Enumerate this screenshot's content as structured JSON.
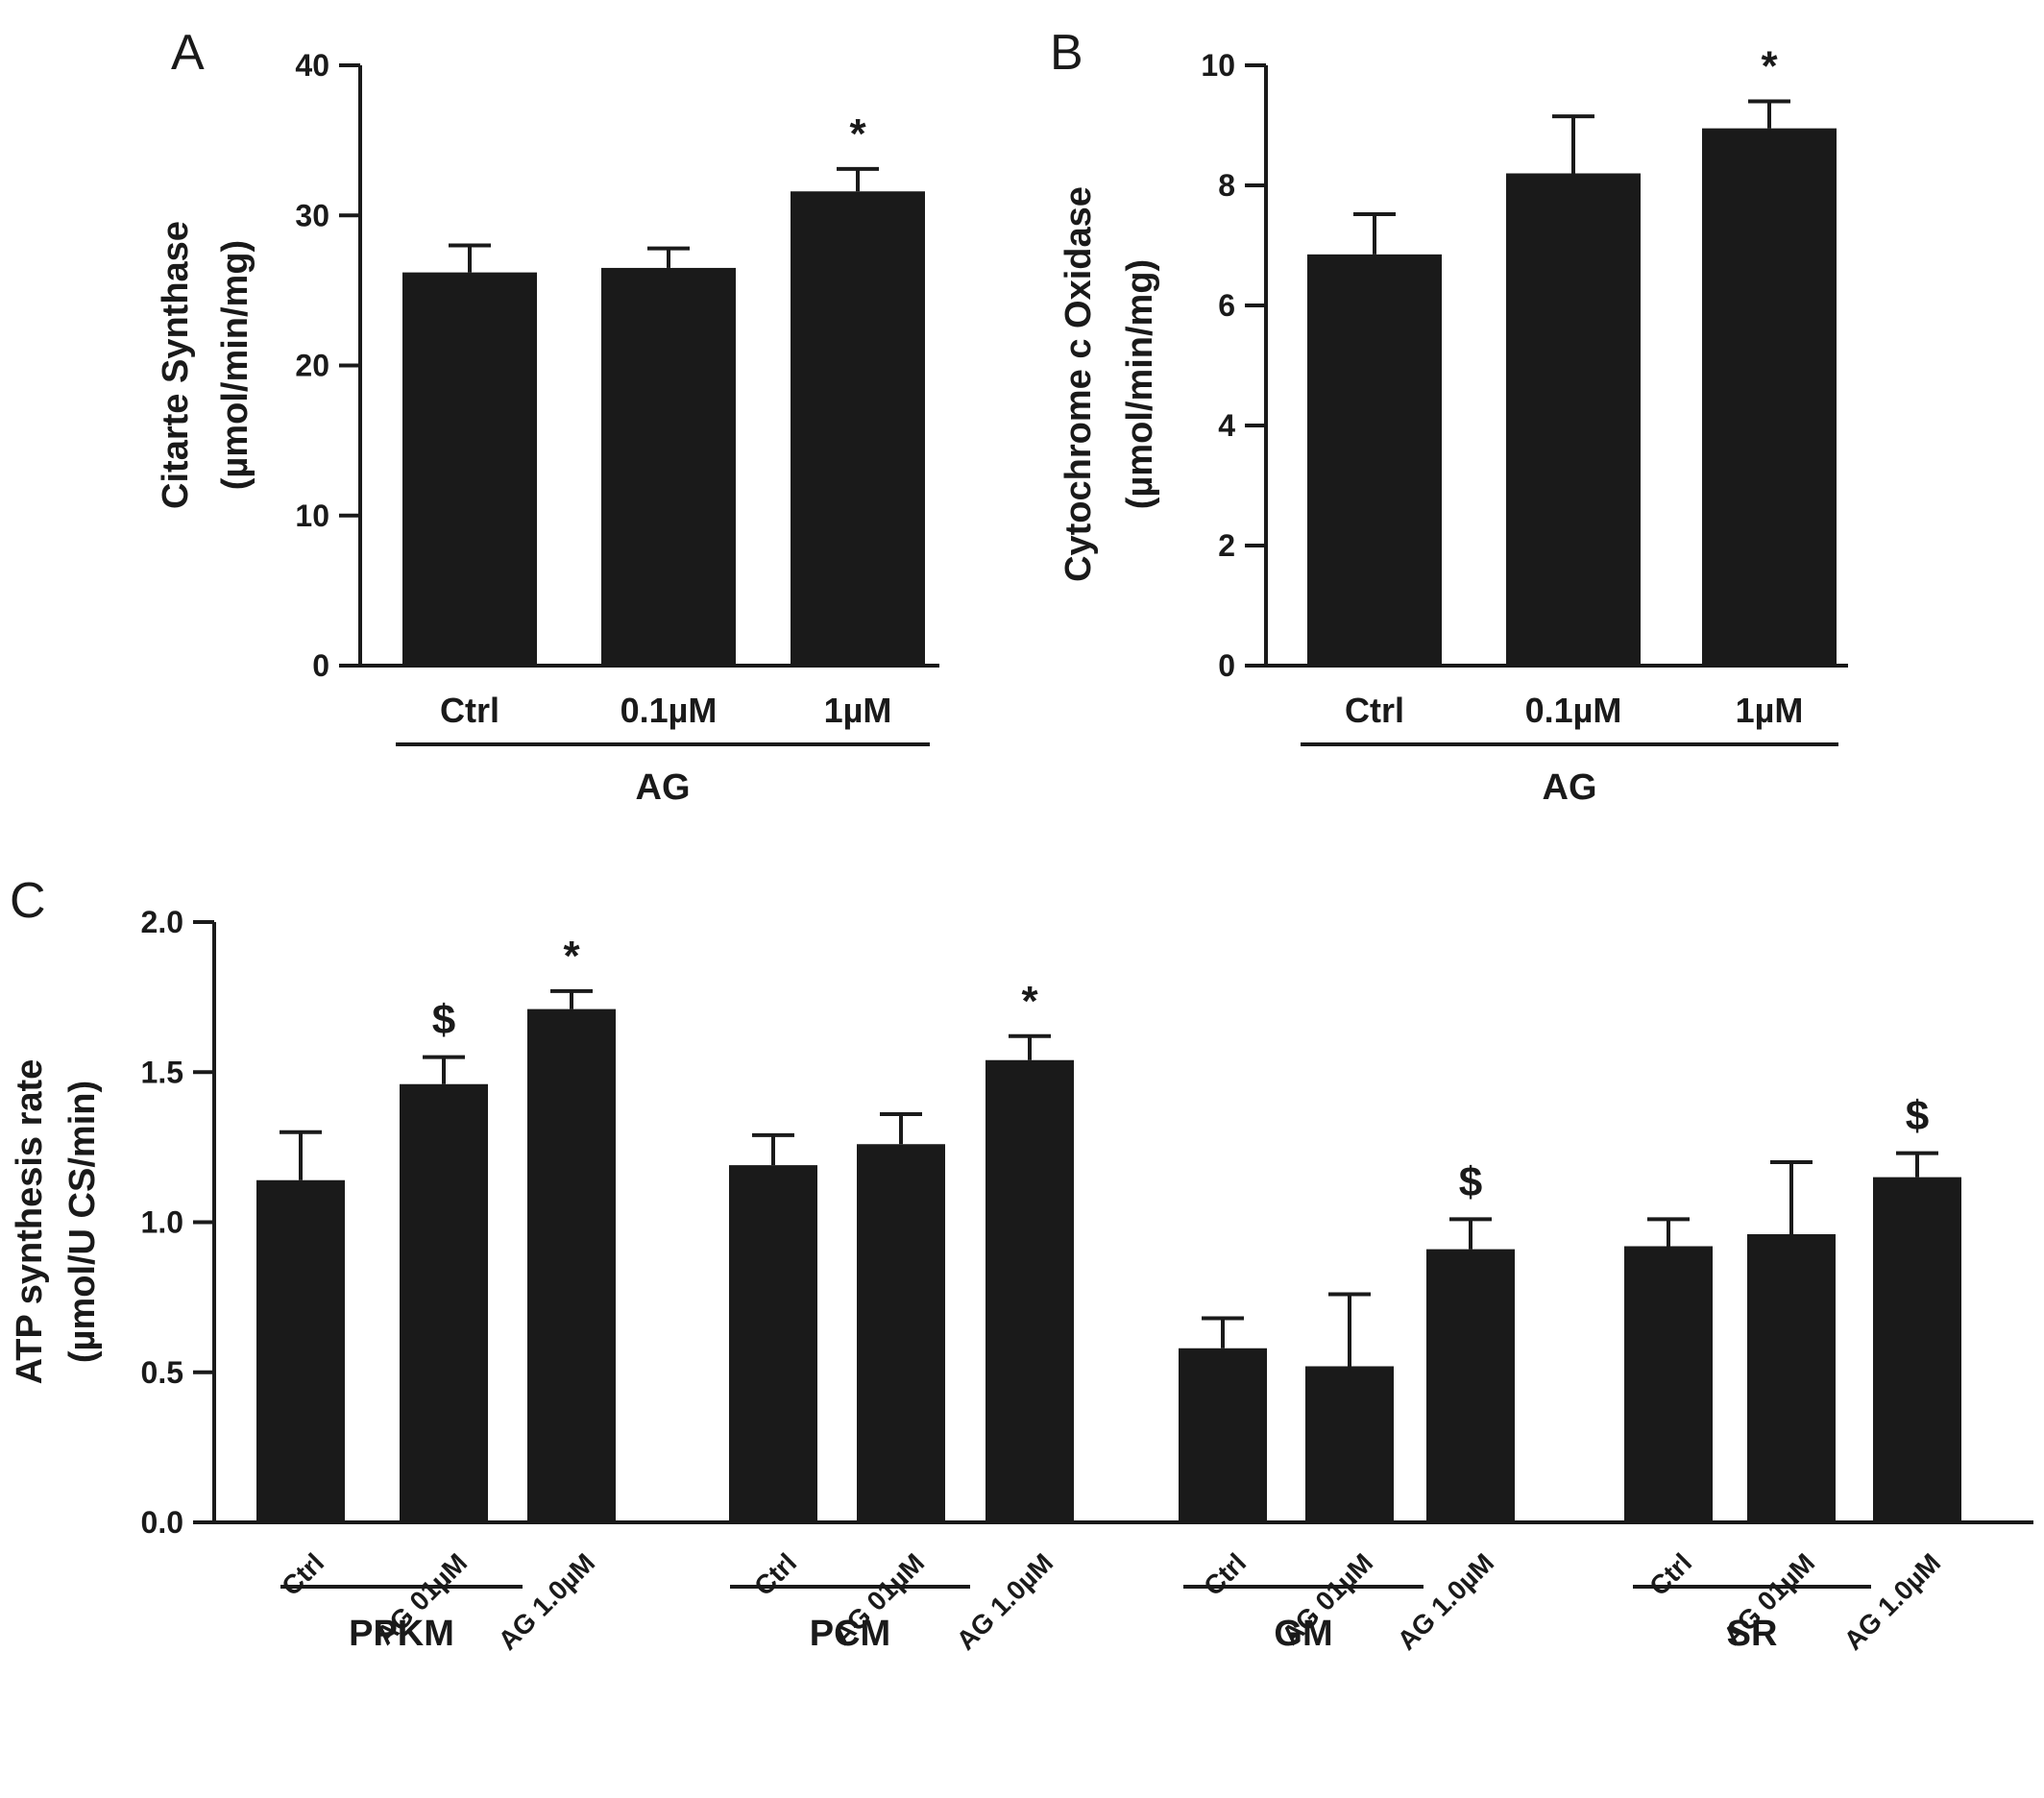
{
  "chart_data": [
    {
      "panel": "A",
      "type": "bar",
      "ylabel": [
        "Citarte Synthase",
        "(µmol/min/mg)"
      ],
      "ylim": [
        0,
        40
      ],
      "yticks": [
        "0",
        "10",
        "20",
        "30",
        "40"
      ],
      "categories": [
        "Ctrl",
        "0.1µM",
        "1µM"
      ],
      "values": [
        26.2,
        26.5,
        31.6
      ],
      "errors": [
        1.8,
        1.3,
        1.5
      ],
      "markers": [
        "",
        "",
        "*"
      ],
      "group_label": "AG",
      "legend": "none",
      "grid": false
    },
    {
      "panel": "B",
      "type": "bar",
      "ylabel": [
        "Cytochrome c Oxidase",
        "(µmol/min/mg)"
      ],
      "ylim": [
        0,
        10
      ],
      "yticks": [
        "0",
        "2",
        "4",
        "6",
        "8",
        "10"
      ],
      "categories": [
        "Ctrl",
        "0.1µM",
        "1µM"
      ],
      "values": [
        6.85,
        8.2,
        8.95
      ],
      "errors": [
        0.67,
        0.95,
        0.45
      ],
      "markers": [
        "",
        "",
        "*"
      ],
      "group_label": "AG",
      "legend": "none",
      "grid": false
    },
    {
      "panel": "C",
      "type": "bar",
      "ylabel": [
        "ATP synthesis rate",
        "(µmol/U CS/min)"
      ],
      "ylim": [
        0,
        2.0
      ],
      "yticks": [
        "0.0",
        "0.5",
        "1.0",
        "1.5",
        "2.0"
      ],
      "groups": [
        {
          "name": "PPKM",
          "categories": [
            "Ctrl",
            "AG 01µM",
            "AG 1.0µM"
          ],
          "values": [
            1.14,
            1.46,
            1.71
          ],
          "errors": [
            0.16,
            0.09,
            0.06
          ],
          "markers": [
            "",
            "$",
            "*"
          ]
        },
        {
          "name": "PCM",
          "categories": [
            "Ctrl",
            "AG 01µM",
            "AG 1.0µM"
          ],
          "values": [
            1.19,
            1.26,
            1.54
          ],
          "errors": [
            0.1,
            0.1,
            0.08
          ],
          "markers": [
            "",
            "",
            "*"
          ]
        },
        {
          "name": "GM",
          "categories": [
            "Ctrl",
            "AG 01µM",
            "AG 1.0µM"
          ],
          "values": [
            0.58,
            0.52,
            0.91
          ],
          "errors": [
            0.1,
            0.24,
            0.1
          ],
          "markers": [
            "",
            "",
            "$"
          ]
        },
        {
          "name": "SR",
          "categories": [
            "Ctrl",
            "AG 01µM",
            "AG 1.0µM"
          ],
          "values": [
            0.92,
            0.96,
            1.15
          ],
          "errors": [
            0.09,
            0.24,
            0.08
          ],
          "markers": [
            "",
            "",
            "$"
          ]
        }
      ],
      "legend": "none",
      "grid": false
    }
  ]
}
